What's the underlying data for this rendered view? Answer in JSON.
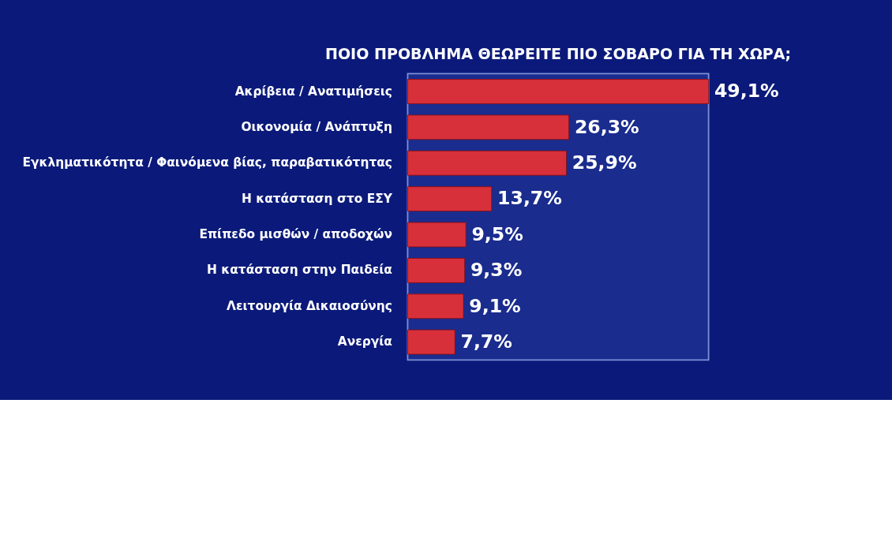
{
  "chart_data": {
    "type": "bar",
    "orientation": "horizontal",
    "title": "ΠΟΙΟ ΠΡΟΒΛΗΜΑ ΘΕΩΡΕΙΤΕ ΠΙΟ ΣΟΒΑΡΟ ΓΙΑ ΤΗ ΧΩΡΑ;",
    "categories": [
      "Ακρίβεια / Ανατιμήσεις",
      "Οικονομία / Ανάπτυξη",
      "Εγκληματικότητα / Φαινόμενα βίας, παραβατικότητας",
      "Η κατάσταση στο ΕΣΥ",
      "Επίπεδο μισθών / αποδοχών",
      "Η κατάσταση στην Παιδεία",
      "Λειτουργία Δικαιοσύνης",
      "Ανεργία"
    ],
    "values": [
      49.1,
      26.3,
      25.9,
      13.7,
      9.5,
      9.3,
      9.1,
      7.7
    ],
    "value_labels": [
      "49,1%",
      "26,3%",
      "25,9%",
      "13,7%",
      "9,5%",
      "9,3%",
      "9,1%",
      "7,7%"
    ],
    "color": "#d8303a"
  }
}
